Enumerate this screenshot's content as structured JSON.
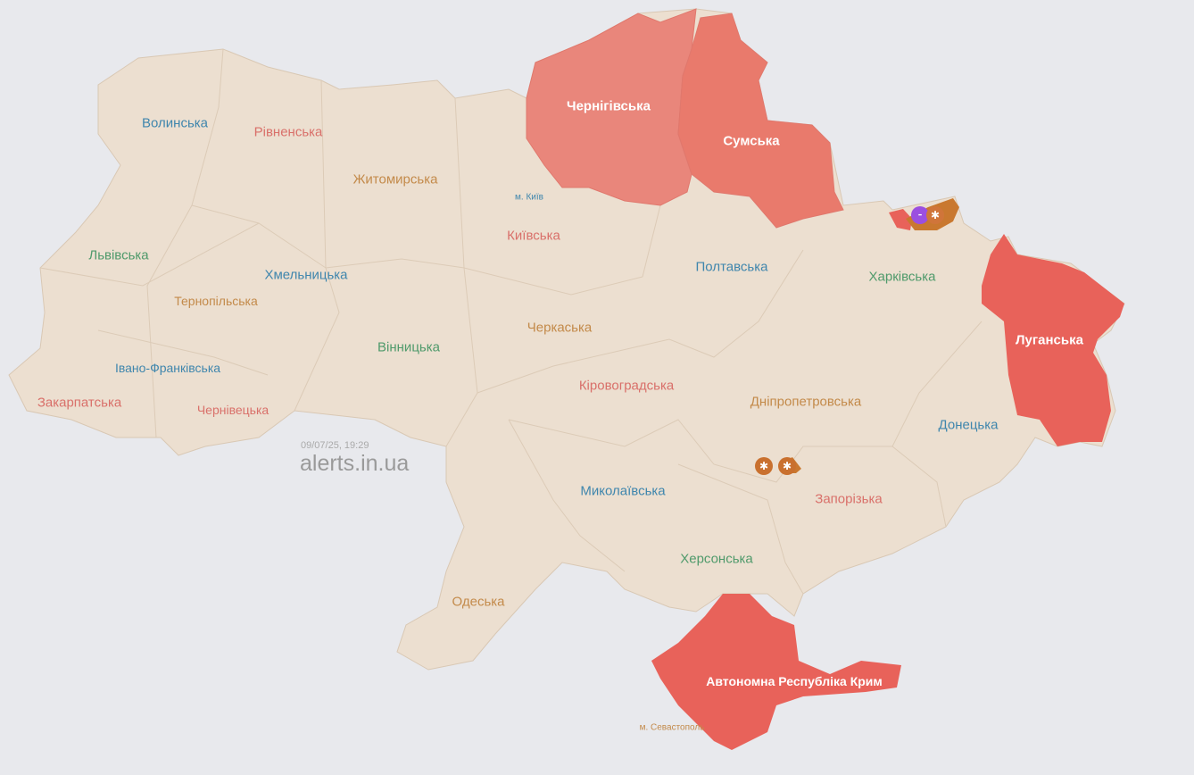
{
  "timestamp": "09/07/25, 19:29",
  "brand": "alerts.in.ua",
  "colors": {
    "background": "#e8e9ed",
    "land": "#ecdfd0",
    "alert": "#e8625a",
    "alert_chernihiv": "#e9867b",
    "alert_sumy": "#e97a6c",
    "artillery": "#c9702e",
    "firearms": "#9b4fe0"
  },
  "regions": {
    "volyn": {
      "label": "Волинська",
      "alert": false
    },
    "rivne": {
      "label": "Рівненська",
      "alert": false
    },
    "zhytomyr": {
      "label": "Житомирська",
      "alert": false
    },
    "kyiv_city": {
      "label": "м. Київ",
      "alert": false
    },
    "kyiv": {
      "label": "Київська",
      "alert": false
    },
    "chernihiv": {
      "label": "Чернігівська",
      "alert": true
    },
    "sumy": {
      "label": "Сумська",
      "alert": true
    },
    "lviv": {
      "label": "Львівська",
      "alert": false
    },
    "khmelnytskyi": {
      "label": "Хмельницька",
      "alert": false
    },
    "ternopil": {
      "label": "Тернопільська",
      "alert": false
    },
    "poltava": {
      "label": "Полтавська",
      "alert": false
    },
    "kharkiv": {
      "label": "Харківська",
      "alert": false
    },
    "luhansk": {
      "label": "Луганська",
      "alert": true
    },
    "ivano_frankivsk": {
      "label": "Івано-Франківська",
      "alert": false
    },
    "vinnytsia": {
      "label": "Вінницька",
      "alert": false
    },
    "cherkasy": {
      "label": "Черкаська",
      "alert": false
    },
    "zakarpattia": {
      "label": "Закарпатська",
      "alert": false
    },
    "chernivtsi": {
      "label": "Чернівецька",
      "alert": false
    },
    "kirovohrad": {
      "label": "Кіровоградська",
      "alert": false
    },
    "dnipro": {
      "label": "Дніпропетровська",
      "alert": false
    },
    "donetsk": {
      "label": "Донецька",
      "alert": false
    },
    "mykolaiv": {
      "label": "Миколаївська",
      "alert": false
    },
    "zaporizhzhia": {
      "label": "Запорізька",
      "alert": false
    },
    "kherson": {
      "label": "Херсонська",
      "alert": false
    },
    "odesa": {
      "label": "Одеська",
      "alert": false
    },
    "crimea": {
      "label": "Автономна Республіка Крим",
      "alert": true
    },
    "sevastopol": {
      "label": "м. Севастополь",
      "alert": true
    }
  },
  "threat_icons": [
    {
      "name": "firearms-icon",
      "area": "Харківська"
    },
    {
      "name": "artillery-icon",
      "area": "Харківська"
    },
    {
      "name": "artillery-icon",
      "area": "Дніпропетровська"
    },
    {
      "name": "artillery-icon",
      "area": "Дніпропетровська"
    }
  ]
}
